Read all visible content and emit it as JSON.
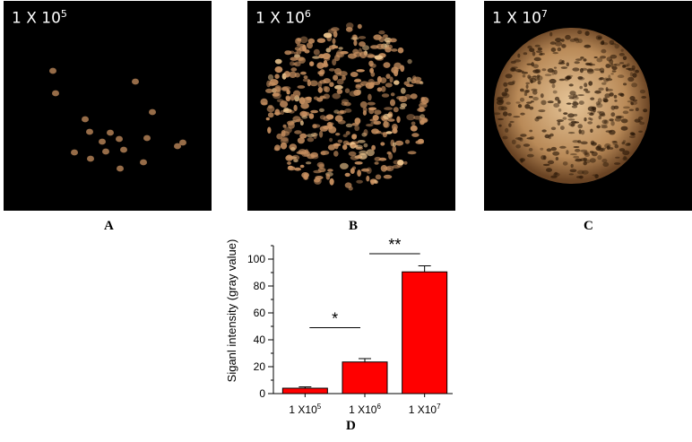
{
  "panels": [
    {
      "id": "A",
      "label_base": "1 X 10",
      "label_exp": "5",
      "letter": "A",
      "density": "sparse"
    },
    {
      "id": "B",
      "label_base": "1 X 10",
      "label_exp": "6",
      "letter": "B",
      "density": "medium"
    },
    {
      "id": "C",
      "label_base": "1 X 10",
      "label_exp": "7",
      "letter": "C",
      "density": "dense"
    }
  ],
  "colors": {
    "bar": "#ff0000",
    "spot": "#c89060",
    "spot_bright": "#f0c890"
  },
  "chart_data": {
    "type": "bar",
    "categories": [
      {
        "base": "1 X10",
        "exp": "5"
      },
      {
        "base": "1 X10",
        "exp": "6"
      },
      {
        "base": "1 X10",
        "exp": "7"
      }
    ],
    "series": [
      {
        "values": [
          4,
          23.5,
          90.5
        ],
        "errors": [
          1,
          2.5,
          4.5
        ]
      }
    ],
    "ylabel": "Siganl intensity (gray value)",
    "xlabel": "",
    "ylim": [
      0,
      110
    ],
    "yticks": [
      0,
      20,
      40,
      60,
      80,
      100
    ],
    "letter": "D",
    "significance": [
      {
        "from": 0,
        "to": 1,
        "label": "*",
        "y": 49
      },
      {
        "from": 1,
        "to": 2,
        "label": "**",
        "y": 104
      }
    ]
  }
}
